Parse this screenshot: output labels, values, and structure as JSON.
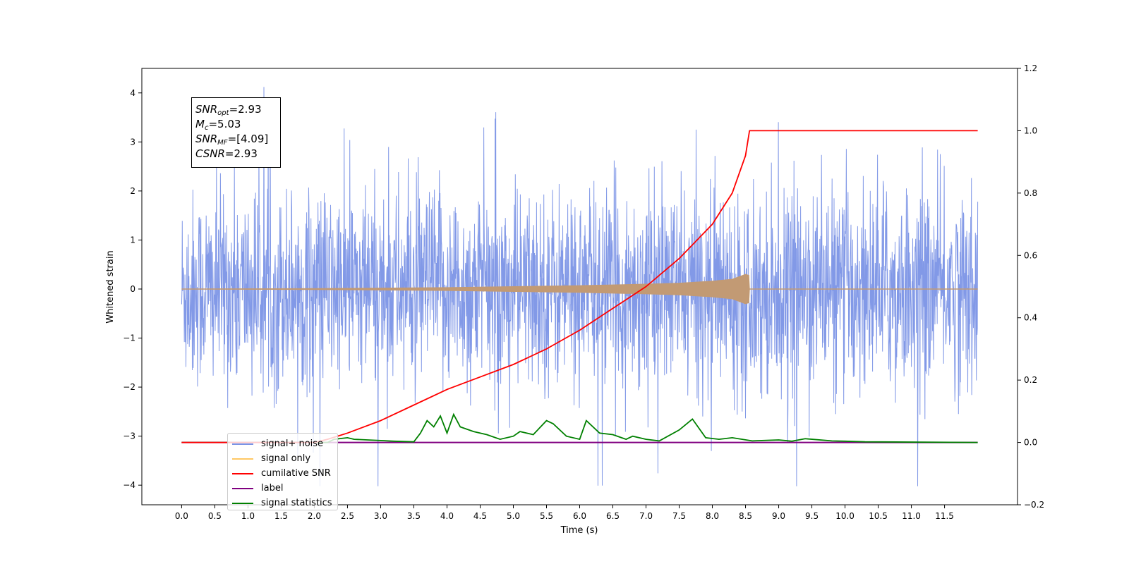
{
  "chart_data": {
    "type": "line",
    "xlabel": "Time (s)",
    "ylabel": "Whitened strain",
    "xlim": [
      -0.6,
      12.6
    ],
    "ylim": [
      -4.4,
      4.5
    ],
    "ylim_right": [
      -0.2,
      1.2
    ],
    "x_ticks": [
      "0.0",
      "0.5",
      "1.0",
      "1.5",
      "2.0",
      "2.5",
      "3.0",
      "3.5",
      "4.0",
      "4.5",
      "5.0",
      "5.5",
      "6.0",
      "6.5",
      "7.0",
      "7.5",
      "8.0",
      "8.5",
      "9.0",
      "9.5",
      "10.0",
      "10.5",
      "11.0",
      "11.5"
    ],
    "y_ticks_left": [
      "4",
      "3",
      "2",
      "1",
      "0",
      "−1",
      "−2",
      "−3",
      "−4"
    ],
    "y_ticks_right": [
      "1.2",
      "1.0",
      "0.8",
      "0.6",
      "0.4",
      "0.2",
      "0.0",
      "−0.2"
    ],
    "grid": false,
    "legend_position": "lower-left",
    "colors": {
      "signal_noise": "#7b94e6",
      "signal_only": "#c29a74",
      "cumulative_snr": "#ff0000",
      "label": "#800080",
      "signal_statistics": "#008000"
    },
    "annotation": {
      "snr_opt": "2.93",
      "mc": "5.03",
      "snr_mf": "[4.09]",
      "csnr": "2.93"
    },
    "series": [
      {
        "name": "signal+ noise",
        "axis": "left",
        "description_envelope": {
          "x_range": [
            0.0,
            12.0
          ],
          "typical_amplitude": 2.2,
          "peak_max": 4.12,
          "peak_min": -4.02
        }
      },
      {
        "name": "signal only",
        "axis": "left",
        "envelope_points": [
          [
            0.0,
            0.0
          ],
          [
            2.0,
            0.01
          ],
          [
            4.0,
            0.03
          ],
          [
            6.0,
            0.07
          ],
          [
            7.0,
            0.1
          ],
          [
            7.5,
            0.12
          ],
          [
            8.0,
            0.16
          ],
          [
            8.3,
            0.2
          ],
          [
            8.5,
            0.3
          ],
          [
            8.55,
            0.28
          ],
          [
            8.56,
            0.0
          ],
          [
            12.0,
            0.0
          ]
        ]
      },
      {
        "name": "cumilative SNR",
        "axis": "right",
        "x": [
          0.0,
          2.0,
          2.2,
          2.5,
          3.0,
          3.5,
          4.0,
          4.5,
          5.0,
          5.5,
          6.0,
          6.5,
          7.0,
          7.5,
          8.0,
          8.3,
          8.5,
          8.56,
          12.0
        ],
        "values": [
          0.0,
          0.0,
          0.01,
          0.03,
          0.07,
          0.12,
          0.17,
          0.21,
          0.25,
          0.3,
          0.36,
          0.43,
          0.5,
          0.59,
          0.7,
          0.8,
          0.92,
          1.0,
          1.0
        ]
      },
      {
        "name": "label",
        "axis": "right",
        "x": [
          0.0,
          12.0
        ],
        "values": [
          0.0,
          0.0
        ]
      },
      {
        "name": "signal statistics",
        "axis": "right",
        "x": [
          0.0,
          2.2,
          2.3,
          2.5,
          2.6,
          2.8,
          3.0,
          3.2,
          3.5,
          3.6,
          3.7,
          3.8,
          3.9,
          4.0,
          4.1,
          4.2,
          4.4,
          4.6,
          4.8,
          5.0,
          5.1,
          5.3,
          5.5,
          5.6,
          5.8,
          6.0,
          6.1,
          6.3,
          6.5,
          6.7,
          6.8,
          7.0,
          7.2,
          7.5,
          7.7,
          7.9,
          8.1,
          8.3,
          8.6,
          9.0,
          9.2,
          9.4,
          9.8,
          10.0,
          10.3,
          12.0
        ],
        "values": [
          0.0,
          0.0,
          0.01,
          0.015,
          0.01,
          0.008,
          0.006,
          0.004,
          0.002,
          0.03,
          0.07,
          0.05,
          0.085,
          0.03,
          0.09,
          0.05,
          0.035,
          0.025,
          0.01,
          0.02,
          0.035,
          0.025,
          0.07,
          0.06,
          0.02,
          0.01,
          0.07,
          0.03,
          0.025,
          0.01,
          0.02,
          0.01,
          0.005,
          0.04,
          0.075,
          0.015,
          0.01,
          0.015,
          0.005,
          0.008,
          0.004,
          0.012,
          0.005,
          0.004,
          0.002,
          0.0
        ]
      }
    ]
  }
}
